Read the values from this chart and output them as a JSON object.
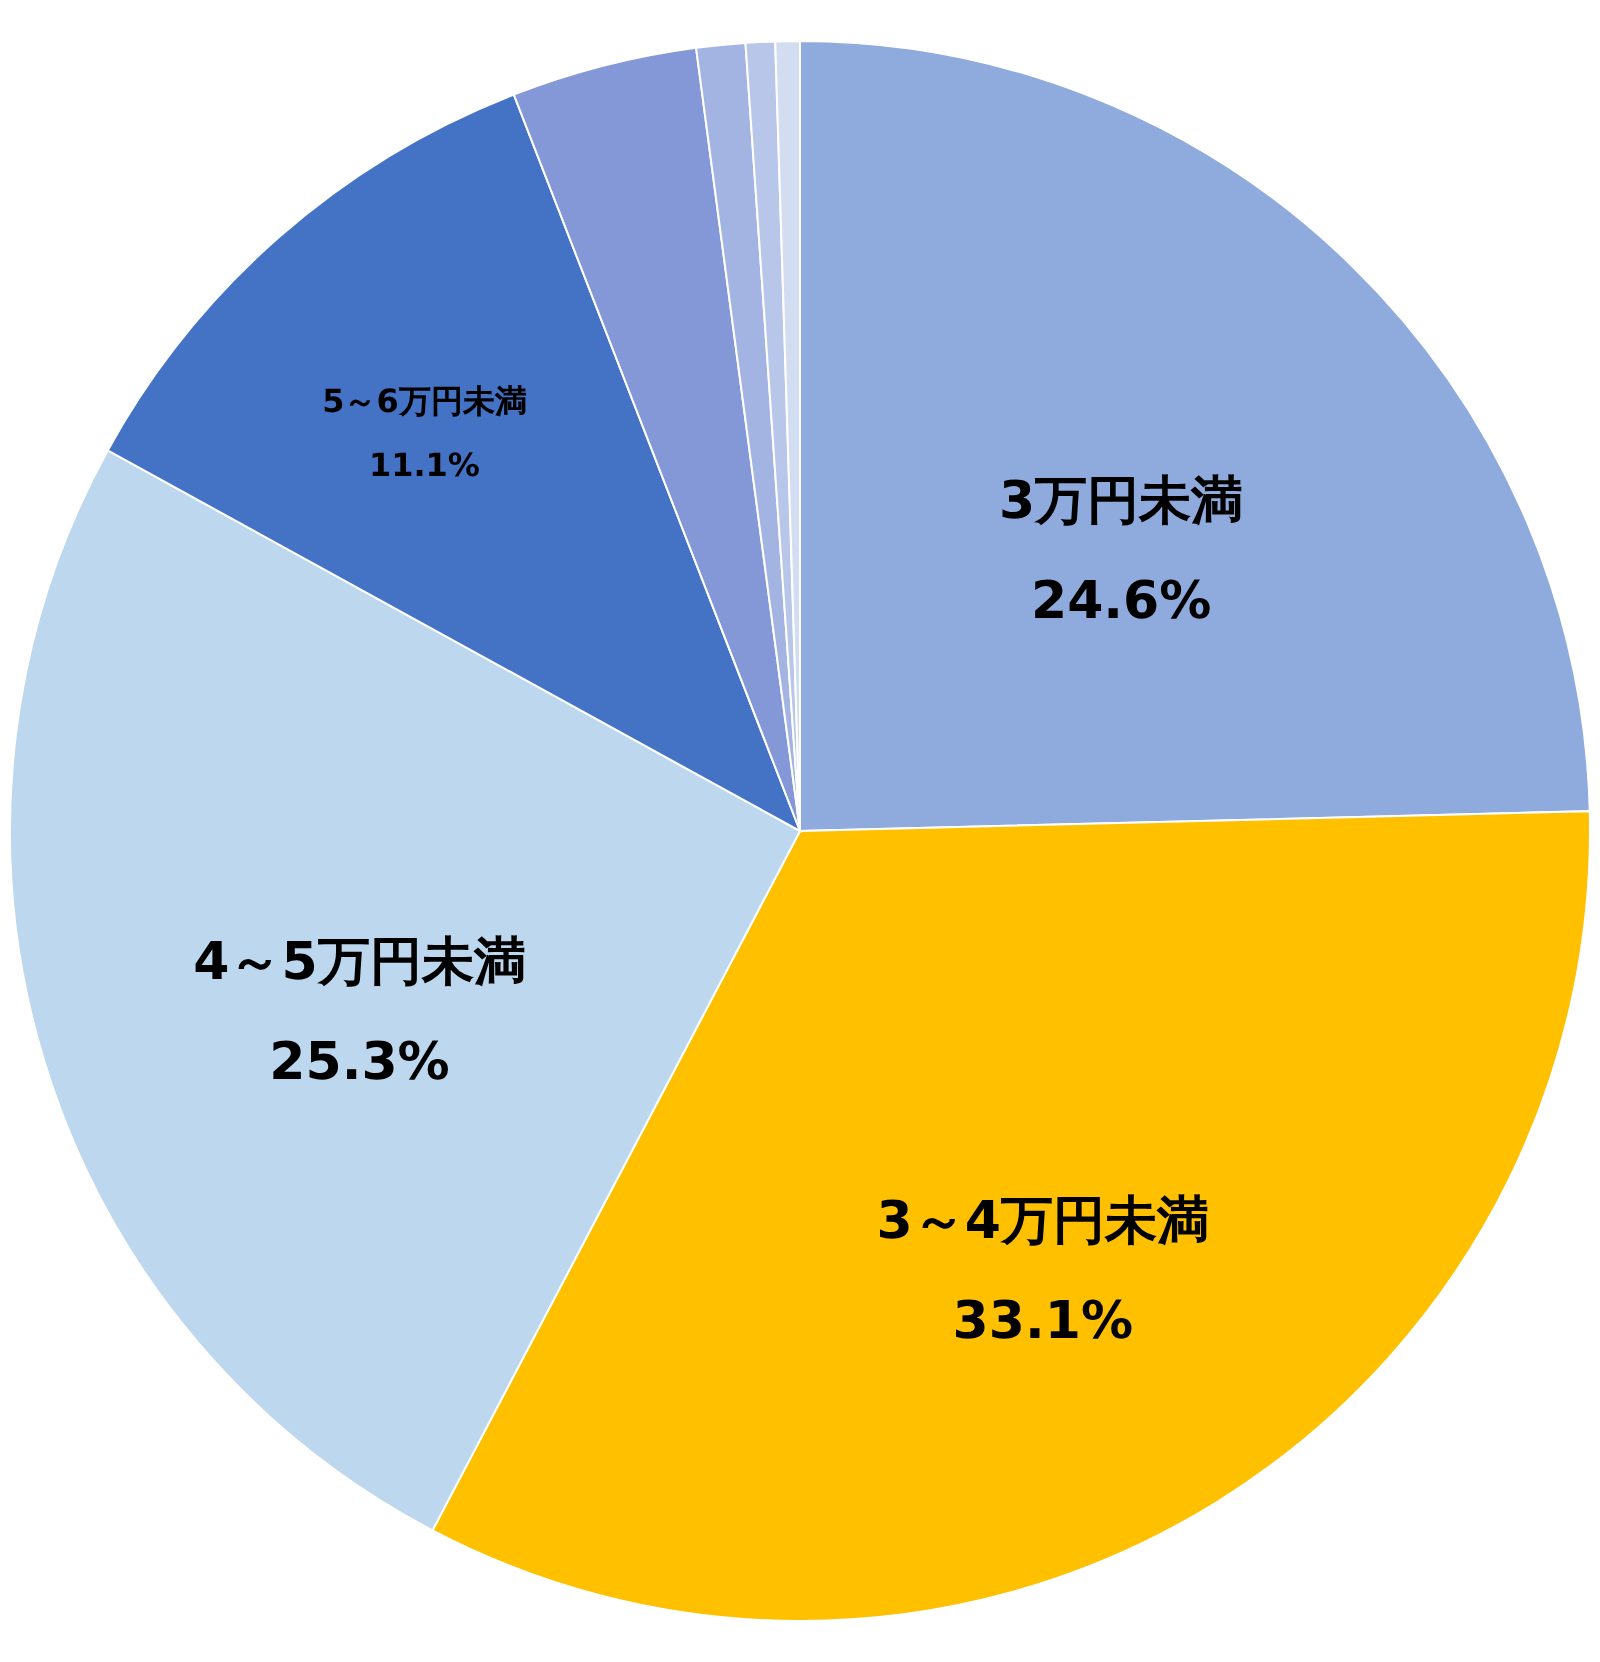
{
  "chart_data": {
    "type": "pie",
    "categories": [
      "3万円未満",
      "3～4万円未満",
      "4～5万円未満",
      "5～6万円未満",
      null,
      null,
      null,
      null
    ],
    "values": [
      24.6,
      33.1,
      25.3,
      11.1,
      3.8,
      1.0,
      0.6,
      0.5
    ],
    "value_labels": [
      "24.6%",
      "33.1%",
      "25.3%",
      "11.1%",
      null,
      null,
      null,
      null
    ],
    "colors": [
      "#8faadc",
      "#ffc000",
      "#bdd7ee",
      "#4472c4",
      "#8497d6",
      "#a3b4e2",
      "#b8c6ea",
      "#d3ddf2"
    ]
  }
}
